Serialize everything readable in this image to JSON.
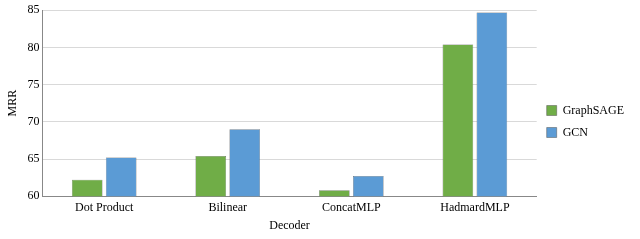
{
  "chart_data": {
    "type": "bar",
    "x_label": "Decoder",
    "y_label": "MRR",
    "categories": [
      "Dot Product",
      "Bilinear",
      "ConcatMLP",
      "HadmardMLP"
    ],
    "series": [
      {
        "name": "GraphSAGE",
        "color": "#70ad47",
        "values": [
          62.2,
          65.4,
          60.8,
          80.4
        ]
      },
      {
        "name": "GCN",
        "color": "#5b9bd5",
        "values": [
          65.2,
          69.0,
          62.7,
          84.7
        ]
      }
    ],
    "ylim": [
      60,
      85
    ],
    "yticks": [
      60,
      65,
      70,
      75,
      80,
      85
    ],
    "grid": true,
    "legend": "right"
  }
}
